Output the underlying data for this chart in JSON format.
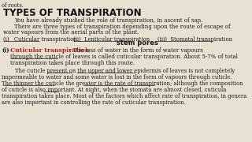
{
  "bg_color": "#e8e0d0",
  "header_bg": "#8fbfc8",
  "header_text": "TYPES OF TRANSPIRATION",
  "top_text": "of roots.",
  "para1": "You have already studied the role of transpiration, in ascent of sap.",
  "para2a": "There are three types of transpiration depending upon the route of escape of",
  "para2b": "water vapours from the aerial parts of the plant.",
  "type1": "(i)   Cuticular transpiration",
  "type2": "(ii)  Lenticular transpiration",
  "type3": "(iii)  Stomatal transpiration",
  "handwritten": "stem pores",
  "sec_num": "(i)",
  "sec_title": "Cuticular transpiration",
  "sec_body1": ": The loss of water in the form of water vapours",
  "sec_body2": "through the cuticle of leaves is called cuticular transpiration. About 5-7% of total",
  "sec_body3": "transpiration takes place through this route.",
  "para3": [
    "        The cuticle present on the upper and lower epidermis of leaves is not completely",
    "impermeable to water and some water is lost in the form of vapours through cuticle.",
    "The thinner the cuticle the greater is the rate of transpiration; although the composition",
    "of cuticle is also important. At night, when the stomata are almost closed, cuticula",
    "transpiration takes place. Most of the factors which affect rate of transpiration, in genera",
    "are also important in controlling the rate of cuticular transpiration."
  ],
  "red_color": "#b22222",
  "text_color": "#1a1a1a",
  "header_color": "#111111"
}
